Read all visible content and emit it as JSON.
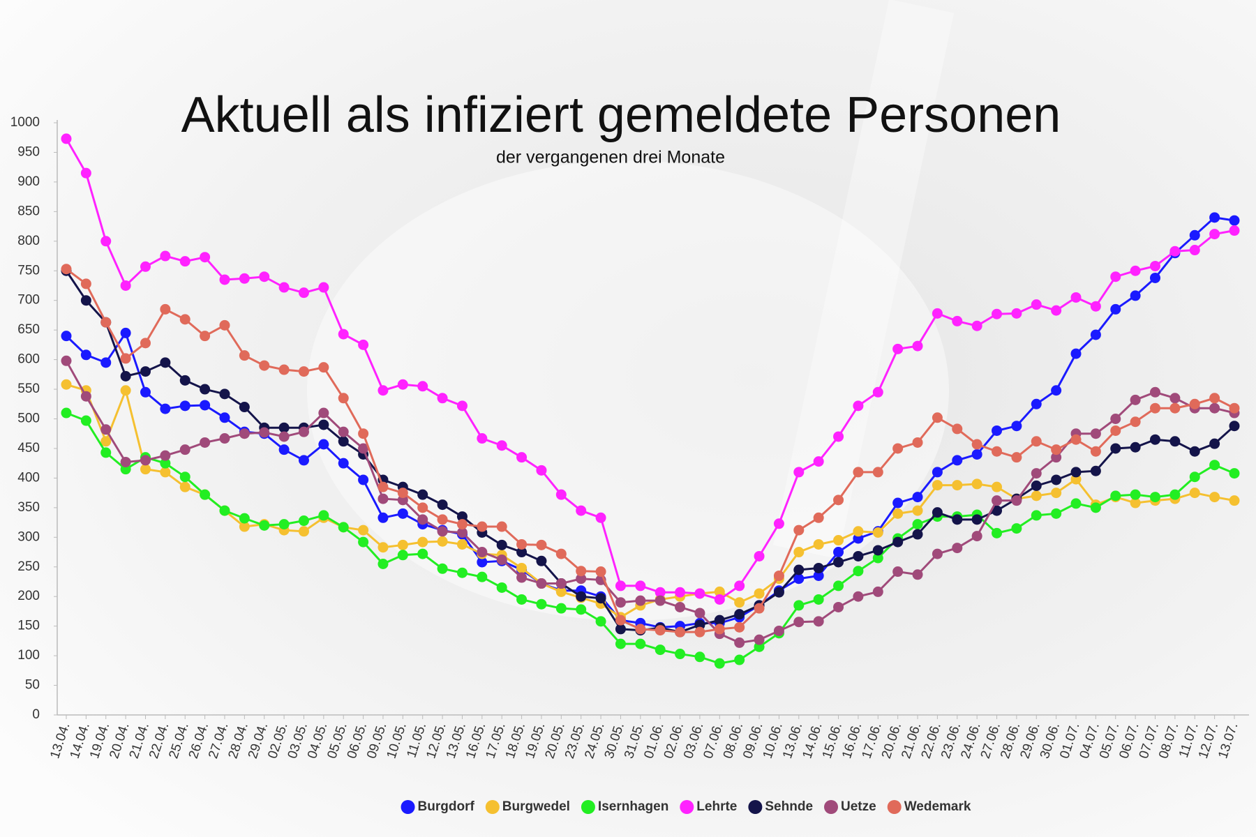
{
  "chart_data": {
    "type": "line",
    "title": "Aktuell als infiziert gemeldete Personen",
    "subtitle": "der vergangenen drei Monate",
    "categories": [
      "13.04.",
      "14.04.",
      "19.04.",
      "20.04.",
      "21.04.",
      "22.04.",
      "25.04.",
      "26.04.",
      "27.04.",
      "28.04.",
      "29.04.",
      "02.05.",
      "03.05.",
      "04.05.",
      "05.05.",
      "06.05.",
      "09.05.",
      "10.05.",
      "11.05.",
      "12.05.",
      "13.05.",
      "16.05.",
      "17.05.",
      "18.05.",
      "19.05.",
      "20.05.",
      "23.05.",
      "24.05.",
      "30.05.",
      "31.05.",
      "01.06.",
      "02.06.",
      "03.06.",
      "07.06.",
      "08.06.",
      "09.06.",
      "10.06.",
      "13.06.",
      "14.06.",
      "15.06.",
      "16.06.",
      "17.06.",
      "20.06.",
      "21.06.",
      "22.06.",
      "23.06.",
      "24.06.",
      "27.06.",
      "28.06.",
      "29.06.",
      "30.06.",
      "01.07.",
      "04.07.",
      "05.07.",
      "06.07.",
      "07.07.",
      "08.07.",
      "11.07.",
      "12.07.",
      "13.07."
    ],
    "series": [
      {
        "name": "Burgdorf",
        "color": "#1a1aff",
        "values": [
          640,
          608,
          595,
          645,
          545,
          517,
          522,
          523,
          502,
          478,
          475,
          448,
          430,
          457,
          425,
          397,
          333,
          340,
          322,
          312,
          305,
          258,
          260,
          245,
          222,
          210,
          210,
          200,
          160,
          155,
          148,
          150,
          155,
          155,
          165,
          185,
          210,
          230,
          235,
          275,
          298,
          310,
          358,
          368,
          410,
          430,
          440,
          480,
          488,
          525,
          548,
          610,
          642,
          685,
          708,
          738,
          780,
          810,
          840,
          835
        ]
      },
      {
        "name": "Burgwedel",
        "color": "#f5c030",
        "values": [
          558,
          548,
          462,
          548,
          415,
          410,
          385,
          372,
          345,
          318,
          322,
          312,
          310,
          333,
          317,
          312,
          283,
          287,
          292,
          293,
          288,
          272,
          270,
          248,
          222,
          208,
          198,
          188,
          165,
          185,
          195,
          200,
          205,
          208,
          190,
          205,
          230,
          275,
          288,
          295,
          310,
          308,
          340,
          345,
          388,
          388,
          390,
          385,
          365,
          370,
          375,
          398,
          355,
          368,
          358,
          362,
          365,
          375,
          368,
          362
        ]
      },
      {
        "name": "Isernhagen",
        "color": "#22ee22",
        "values": [
          510,
          497,
          443,
          415,
          435,
          425,
          402,
          372,
          345,
          332,
          320,
          322,
          328,
          337,
          317,
          292,
          255,
          270,
          272,
          247,
          240,
          233,
          215,
          195,
          187,
          180,
          178,
          158,
          120,
          120,
          110,
          103,
          98,
          87,
          93,
          115,
          138,
          185,
          195,
          218,
          243,
          265,
          298,
          322,
          335,
          335,
          338,
          307,
          315,
          337,
          340,
          357,
          350,
          370,
          372,
          368,
          372,
          402,
          422,
          408
        ]
      },
      {
        "name": "Lehrte",
        "color": "#ff22ff",
        "values": [
          973,
          915,
          800,
          725,
          757,
          775,
          766,
          773,
          735,
          737,
          740,
          722,
          713,
          722,
          643,
          625,
          548,
          558,
          555,
          535,
          522,
          467,
          455,
          435,
          413,
          372,
          345,
          333,
          218,
          218,
          207,
          207,
          205,
          195,
          218,
          268,
          323,
          410,
          428,
          470,
          522,
          545,
          618,
          623,
          678,
          665,
          657,
          677,
          678,
          693,
          683,
          705,
          690,
          740,
          750,
          758,
          783,
          785,
          812,
          818
        ]
      },
      {
        "name": "Sehnde",
        "color": "#14144a",
        "values": [
          750,
          700,
          663,
          572,
          580,
          595,
          565,
          550,
          542,
          520,
          485,
          485,
          485,
          490,
          462,
          440,
          397,
          385,
          372,
          355,
          335,
          308,
          287,
          275,
          260,
          222,
          200,
          197,
          145,
          143,
          147,
          140,
          152,
          160,
          170,
          185,
          207,
          245,
          248,
          258,
          268,
          278,
          292,
          305,
          342,
          330,
          330,
          345,
          365,
          387,
          397,
          410,
          412,
          450,
          452,
          465,
          462,
          445,
          458,
          488
        ]
      },
      {
        "name": "Uetze",
        "color": "#a04a7a",
        "values": [
          598,
          538,
          482,
          427,
          430,
          438,
          448,
          460,
          467,
          475,
          477,
          470,
          478,
          510,
          478,
          450,
          365,
          363,
          330,
          310,
          308,
          275,
          262,
          232,
          222,
          222,
          230,
          228,
          190,
          193,
          193,
          182,
          172,
          137,
          122,
          127,
          142,
          157,
          158,
          182,
          200,
          208,
          242,
          237,
          272,
          282,
          302,
          362,
          362,
          408,
          435,
          475,
          475,
          500,
          532,
          545,
          535,
          518,
          518,
          510
        ]
      },
      {
        "name": "Wedemark",
        "color": "#e06a5a",
        "values": [
          753,
          728,
          663,
          602,
          628,
          685,
          668,
          640,
          658,
          607,
          590,
          583,
          580,
          587,
          535,
          475,
          385,
          375,
          350,
          330,
          322,
          318,
          318,
          288,
          287,
          272,
          243,
          242,
          160,
          145,
          143,
          140,
          140,
          145,
          148,
          180,
          235,
          312,
          333,
          363,
          410,
          410,
          450,
          460,
          502,
          483,
          457,
          445,
          435,
          462,
          448,
          465,
          445,
          480,
          495,
          518,
          518,
          525,
          535,
          518
        ]
      }
    ],
    "ylim": [
      0,
      1000
    ],
    "yticks": [
      0,
      50,
      100,
      150,
      200,
      250,
      300,
      350,
      400,
      450,
      500,
      550,
      600,
      650,
      700,
      750,
      800,
      850,
      900,
      950,
      1000
    ],
    "grid": false
  }
}
